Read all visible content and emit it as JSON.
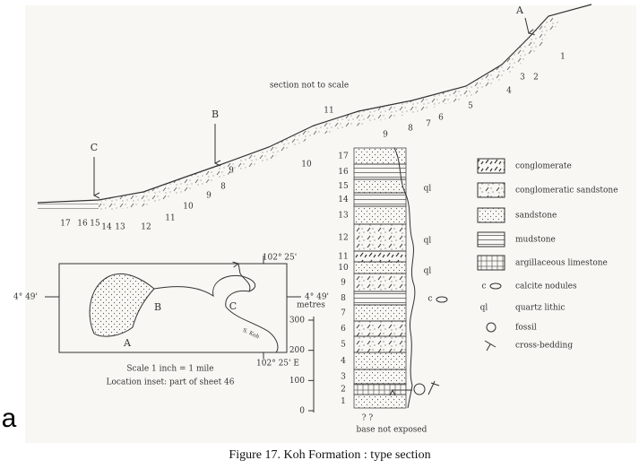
{
  "slide_fragment": "a",
  "section": {
    "note": "section not to scale",
    "markers": [
      "A",
      "B",
      "C"
    ],
    "beds": [
      "1",
      "2",
      "3",
      "4",
      "5",
      "6",
      "7",
      "8",
      "9",
      "10",
      "11",
      "9",
      "8",
      "9",
      "10",
      "11",
      "12",
      "13",
      "14",
      "15",
      "16",
      "17"
    ]
  },
  "inset": {
    "longitude_top": "102° 25'",
    "longitude_bottom": "102° 25' E",
    "latitude_left": "4° 49'",
    "latitude_right": "4° 49'",
    "markers": [
      "B",
      "C",
      "A"
    ],
    "river": "S. Koh",
    "scale": "Scale 1 inch = 1 mile",
    "location": "Location inset:  part of sheet 46"
  },
  "column": {
    "axis_label": "metres",
    "ticks": [
      0,
      100,
      200,
      300
    ],
    "layers": [
      "1",
      "2",
      "3",
      "4",
      "5",
      "6",
      "7",
      "8",
      "9",
      "10",
      "11",
      "12",
      "13",
      "14",
      "15",
      "16",
      "17"
    ],
    "annotations": [
      "ql",
      "ql",
      "ql",
      "c"
    ],
    "unknown": "?  ?",
    "base": "base not exposed"
  },
  "legend": [
    {
      "label": "conglomerate"
    },
    {
      "label": "conglomeratic sandstone"
    },
    {
      "label": "sandstone"
    },
    {
      "label": "mudstone"
    },
    {
      "label": "argillaceous limestone"
    },
    {
      "label": "calcite nodules",
      "symbol": "c"
    },
    {
      "label": "quartz lithic",
      "symbol": "ql"
    },
    {
      "label": "fossil"
    },
    {
      "label": "cross-bedding"
    }
  ],
  "caption": "Figure 17.  Koh Formation : type section"
}
